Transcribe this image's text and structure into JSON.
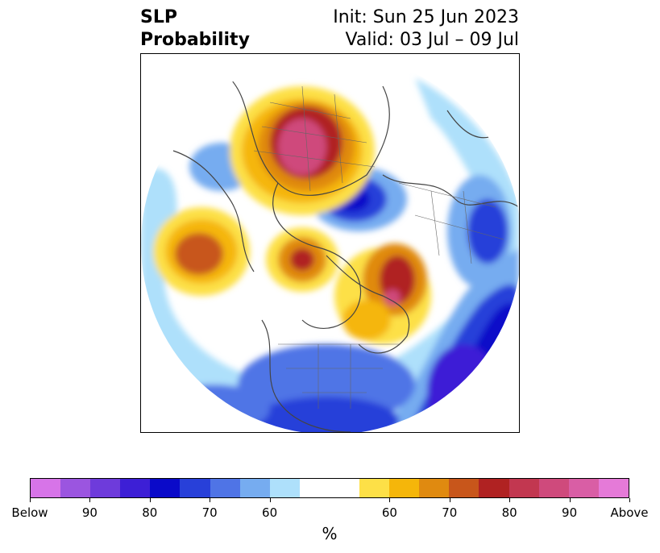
{
  "title": {
    "left_line1": "SLP",
    "left_line2": "Probability",
    "right_line1": "Init: Sun 25 Jun 2023",
    "right_line2": "Valid: 03 Jul – 09 Jul"
  },
  "map": {
    "projection": "north-polar-stereographic",
    "features": [
      "coastlines",
      "country-borders",
      "us-state-borders"
    ],
    "anomalies": [
      {
        "region": "Siberia / Laptev",
        "category": "above",
        "peak_pct": 90
      },
      {
        "region": "Baffin Bay / Greenland west",
        "category": "below",
        "peak_pct": 90
      },
      {
        "region": "North Pacific",
        "category": "above",
        "peak_pct": 70
      },
      {
        "region": "Alaska",
        "category": "above",
        "peak_pct": 80
      },
      {
        "region": "Arctic Canada / Greenland",
        "category": "above",
        "peak_pct": 80
      },
      {
        "region": "North Atlantic",
        "category": "below",
        "peak_pct": 90
      },
      {
        "region": "Northern Europe / Scandinavia",
        "category": "below",
        "peak_pct": 70
      },
      {
        "region": "Eastern US",
        "category": "below",
        "peak_pct": 70
      }
    ]
  },
  "colorbar": {
    "unit_label": "%",
    "colors": [
      "#d774e8",
      "#9b55e0",
      "#6e3bdb",
      "#3d1fd6",
      "#0a0ac9",
      "#2840d9",
      "#4f74e6",
      "#76acf0",
      "#aee0fb",
      "#ffffff",
      "#ffffff",
      "#fde047",
      "#f5b60a",
      "#e08a10",
      "#c8561b",
      "#b02222",
      "#c23750",
      "#cf4a7c",
      "#d95ea5",
      "#e57ad8"
    ],
    "tick_labels": [
      "Below",
      "90",
      "80",
      "70",
      "60",
      "60",
      "70",
      "80",
      "90",
      "Above"
    ],
    "tick_indices": [
      0,
      2,
      4,
      6,
      8,
      12,
      14,
      16,
      18,
      20
    ]
  }
}
